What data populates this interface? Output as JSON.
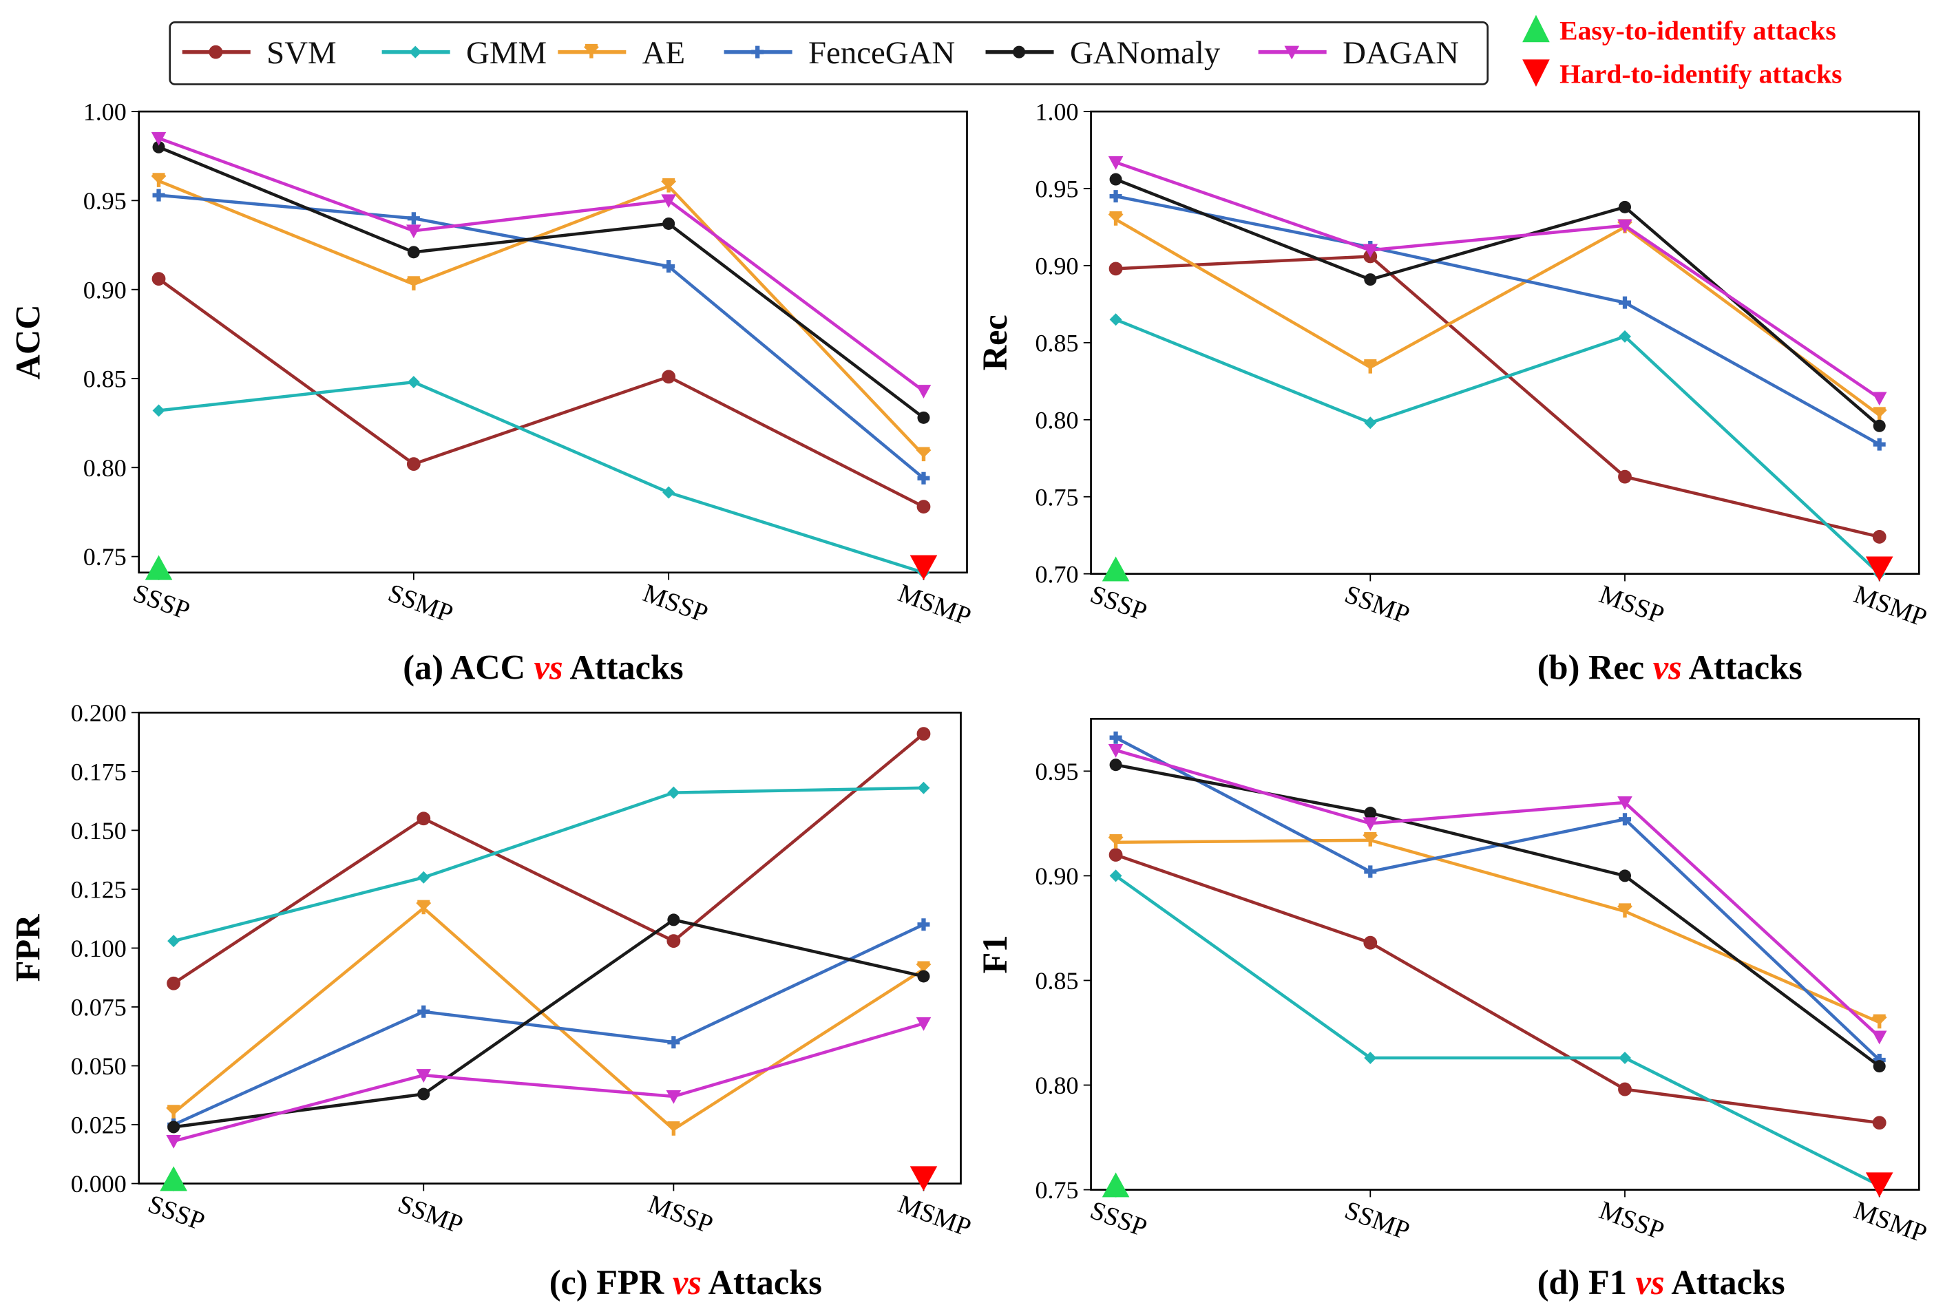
{
  "legend": {
    "position": "top",
    "entries": [
      "SVM",
      "GMM",
      "AE",
      "FenceGAN",
      "GANomaly",
      "DAGAN"
    ]
  },
  "annotations": {
    "easy": "Easy-to-identify attacks",
    "hard": "Hard-to-identify attacks",
    "easy_color": "#22dd55",
    "hard_color": "#ff0000"
  },
  "series_style": [
    {
      "name": "SVM",
      "color": "#9b2d2d",
      "marker": "circle"
    },
    {
      "name": "GMM",
      "color": "#22b5b5",
      "marker": "diamond"
    },
    {
      "name": "AE",
      "color": "#f0a030",
      "marker": "tri"
    },
    {
      "name": "FenceGAN",
      "color": "#3b6fc0",
      "marker": "plus"
    },
    {
      "name": "GANomaly",
      "color": "#1a1a1a",
      "marker": "octagon"
    },
    {
      "name": "DAGAN",
      "color": "#cc33cc",
      "marker": "triangle-down"
    }
  ],
  "chart_data": [
    {
      "type": "line",
      "ylabel": "ACC",
      "caption": {
        "prefix": "(a) ACC",
        "vs": "vs",
        "suffix": "Attacks"
      },
      "categories": [
        "SSSP",
        "SSMP",
        "MSSP",
        "MSMP"
      ],
      "ylim": [
        0.741,
        1.0
      ],
      "yticks": [
        "0.75",
        "0.80",
        "0.85",
        "0.90",
        "0.95",
        "1.00"
      ],
      "series": [
        {
          "name": "SVM",
          "values": [
            0.906,
            0.802,
            0.851,
            0.778
          ]
        },
        {
          "name": "GMM",
          "values": [
            0.832,
            0.848,
            0.786,
            0.74
          ]
        },
        {
          "name": "AE",
          "values": [
            0.961,
            0.903,
            0.958,
            0.807
          ]
        },
        {
          "name": "FenceGAN",
          "values": [
            0.953,
            0.94,
            0.913,
            0.794
          ]
        },
        {
          "name": "GANomaly",
          "values": [
            0.98,
            0.921,
            0.937,
            0.828
          ]
        },
        {
          "name": "DAGAN",
          "values": [
            0.985,
            0.933,
            0.95,
            0.843
          ]
        }
      ]
    },
    {
      "type": "line",
      "ylabel": "Rec",
      "caption": {
        "prefix": "(b) Rec",
        "vs": "vs",
        "suffix": "Attacks"
      },
      "categories": [
        "SSSP",
        "SSMP",
        "MSSP",
        "MSMP"
      ],
      "ylim": [
        0.7,
        1.0
      ],
      "yticks": [
        "0.70",
        "0.75",
        "0.80",
        "0.85",
        "0.90",
        "0.95",
        "1.00"
      ],
      "series": [
        {
          "name": "SVM",
          "values": [
            0.898,
            0.906,
            0.763,
            0.724
          ]
        },
        {
          "name": "GMM",
          "values": [
            0.865,
            0.798,
            0.854,
            0.7
          ]
        },
        {
          "name": "AE",
          "values": [
            0.93,
            0.834,
            0.925,
            0.803
          ]
        },
        {
          "name": "FenceGAN",
          "values": [
            0.945,
            0.912,
            0.876,
            0.784
          ]
        },
        {
          "name": "GANomaly",
          "values": [
            0.956,
            0.891,
            0.938,
            0.796
          ]
        },
        {
          "name": "DAGAN",
          "values": [
            0.967,
            0.91,
            0.926,
            0.814
          ]
        }
      ]
    },
    {
      "type": "line",
      "ylabel": "FPR",
      "caption": {
        "prefix": "(c) FPR",
        "vs": "vs",
        "suffix": "Attacks"
      },
      "categories": [
        "SSSP",
        "SSMP",
        "MSSP",
        "MSMP"
      ],
      "ylim": [
        0.0,
        0.2
      ],
      "yticks": [
        "0.000",
        "0.025",
        "0.050",
        "0.075",
        "0.100",
        "0.125",
        "0.150",
        "0.175",
        "0.200"
      ],
      "series": [
        {
          "name": "SVM",
          "values": [
            0.085,
            0.155,
            0.103,
            0.191
          ]
        },
        {
          "name": "GMM",
          "values": [
            0.103,
            0.13,
            0.166,
            0.168
          ]
        },
        {
          "name": "AE",
          "values": [
            0.03,
            0.117,
            0.023,
            0.091
          ]
        },
        {
          "name": "FenceGAN",
          "values": [
            0.025,
            0.073,
            0.06,
            0.11
          ]
        },
        {
          "name": "GANomaly",
          "values": [
            0.024,
            0.038,
            0.112,
            0.088
          ]
        },
        {
          "name": "DAGAN",
          "values": [
            0.018,
            0.046,
            0.037,
            0.068
          ]
        }
      ]
    },
    {
      "type": "line",
      "ylabel": "F1",
      "caption": {
        "prefix": "(d) F1",
        "vs": "vs",
        "suffix": "Attacks"
      },
      "categories": [
        "SSSP",
        "SSMP",
        "MSSP",
        "MSMP"
      ],
      "ylim": [
        0.75,
        0.975
      ],
      "yticks": [
        "0.75",
        "0.80",
        "0.85",
        "0.90",
        "0.95"
      ],
      "series": [
        {
          "name": "SVM",
          "values": [
            0.91,
            0.868,
            0.798,
            0.782
          ]
        },
        {
          "name": "GMM",
          "values": [
            0.9,
            0.813,
            0.813,
            0.752
          ]
        },
        {
          "name": "AE",
          "values": [
            0.916,
            0.917,
            0.883,
            0.83
          ]
        },
        {
          "name": "FenceGAN",
          "values": [
            0.966,
            0.902,
            0.927,
            0.812
          ]
        },
        {
          "name": "GANomaly",
          "values": [
            0.953,
            0.93,
            0.9,
            0.809
          ]
        },
        {
          "name": "DAGAN",
          "values": [
            0.96,
            0.925,
            0.935,
            0.823
          ]
        }
      ]
    }
  ]
}
